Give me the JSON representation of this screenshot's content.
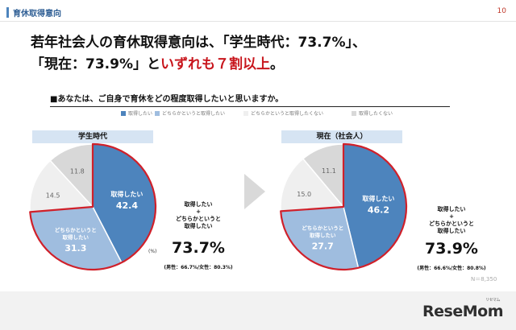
{
  "header": {
    "title": "育休取得意向",
    "page_number": "10"
  },
  "headline": {
    "line1": "若年社会人の育休取得意向は、「学生時代：73.7%」、",
    "line2_prefix": "「現在：73.9%」と",
    "line2_emphasis": "いずれも７割以上",
    "line2_suffix": "。"
  },
  "question": "■あなたは、ご自身で育休をどの程度取得したいと思いますか。",
  "legend": [
    {
      "label": "取得したい",
      "color": "#4d84bd"
    },
    {
      "label": "どちらかというと取得したい",
      "color": "#9fbddf"
    },
    {
      "label": "どちらかというと取得したくない",
      "color": "#efefef"
    },
    {
      "label": "取得したくない",
      "color": "#d8d8d8"
    }
  ],
  "unit_label": "(%)",
  "sample_size": "N＝8,350",
  "chart_data": [
    {
      "type": "pie",
      "title": "学生時代",
      "categories": [
        "取得したい",
        "どちらかというと取得したい",
        "どちらかというと取得したくない",
        "取得したくない"
      ],
      "values": [
        42.4,
        31.3,
        14.5,
        11.8
      ],
      "slice_labels": [
        "取得したい",
        "どちらかというと\n取得したい",
        "",
        ""
      ],
      "colors": [
        "#4d84bd",
        "#9fbddf",
        "#efefef",
        "#d8d8d8"
      ],
      "highlight": "取得したい + どちらかというと取得したい",
      "summary": {
        "label_lines": [
          "取得したい",
          "+",
          "どちらかというと",
          "取得したい"
        ],
        "total": "73.7%",
        "gender": "(男性：66.7%/女性：80.3%)"
      }
    },
    {
      "type": "pie",
      "title": "現在（社会人）",
      "categories": [
        "取得したい",
        "どちらかというと取得したい",
        "どちらかというと取得したくない",
        "取得したくない"
      ],
      "values": [
        46.2,
        27.7,
        15.0,
        11.1
      ],
      "slice_labels": [
        "取得したい",
        "どちらかというと\n取得したい",
        "",
        ""
      ],
      "colors": [
        "#4d84bd",
        "#9fbddf",
        "#efefef",
        "#d8d8d8"
      ],
      "highlight": "取得したい + どちらかというと取得したい",
      "summary": {
        "label_lines": [
          "取得したい",
          "+",
          "どちらかというと",
          "取得したい"
        ],
        "total": "73.9%",
        "gender": "(男性：66.6%/女性：80.8%)"
      }
    }
  ],
  "footer": {
    "logo": "ReseMom",
    "logo_ruby": "リセマム"
  }
}
